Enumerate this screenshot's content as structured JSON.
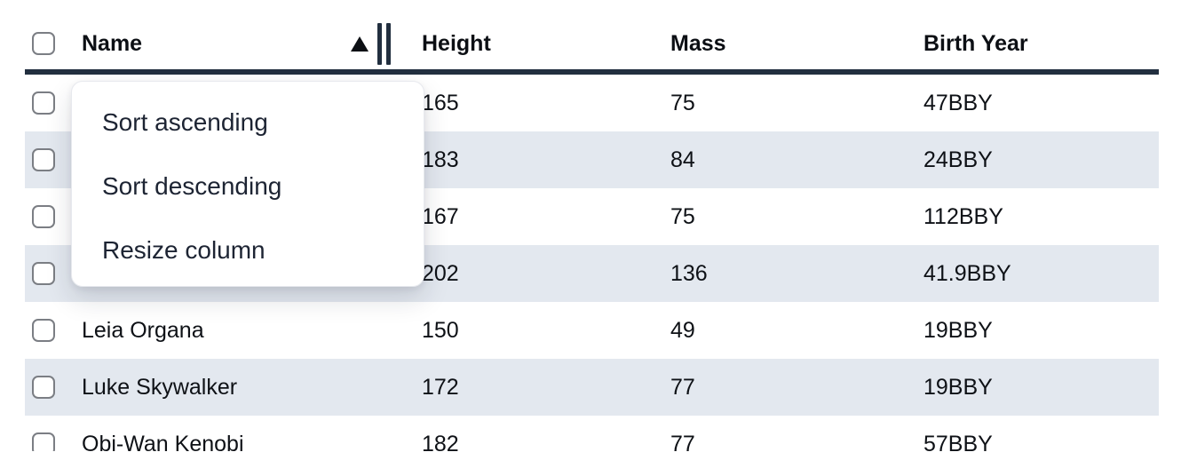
{
  "table": {
    "columns": [
      {
        "key": "name",
        "label": "Name"
      },
      {
        "key": "height",
        "label": "Height"
      },
      {
        "key": "mass",
        "label": "Mass"
      },
      {
        "key": "birth_year",
        "label": "Birth Year"
      }
    ],
    "sort": {
      "column": "Name",
      "direction": "ascending",
      "indicator": "▲"
    },
    "rows": [
      {
        "name": "",
        "height": "165",
        "mass": "75",
        "birth_year": "47BBY",
        "name_occluded_by_menu": true
      },
      {
        "name": "",
        "height": "183",
        "mass": "84",
        "birth_year": "24BBY",
        "name_occluded_by_menu": true
      },
      {
        "name": "",
        "height": "167",
        "mass": "75",
        "birth_year": "112BBY",
        "name_occluded_by_menu": true
      },
      {
        "name": "",
        "height": "202",
        "mass": "136",
        "birth_year": "41.9BBY",
        "name_occluded_by_menu": true
      },
      {
        "name": "Leia Organa",
        "height": "150",
        "mass": "49",
        "birth_year": "19BBY",
        "name_occluded_by_menu": false
      },
      {
        "name": "Luke Skywalker",
        "height": "172",
        "mass": "77",
        "birth_year": "19BBY",
        "name_occluded_by_menu": false
      },
      {
        "name": "Obi-Wan Kenobi",
        "height": "182",
        "mass": "77",
        "birth_year": "57BBY",
        "name_occluded_by_menu": false
      }
    ]
  },
  "menu": {
    "items": [
      {
        "label": "Sort ascending"
      },
      {
        "label": "Sort descending"
      },
      {
        "label": "Resize column"
      }
    ]
  },
  "colors": {
    "header_border": "#222f3f",
    "row_stripe": "#e3e8ef",
    "menu_text": "#1d2433",
    "checkbox_border": "#7b7e84",
    "header_text": "#0c0f14",
    "cell_text": "#0e1116"
  }
}
